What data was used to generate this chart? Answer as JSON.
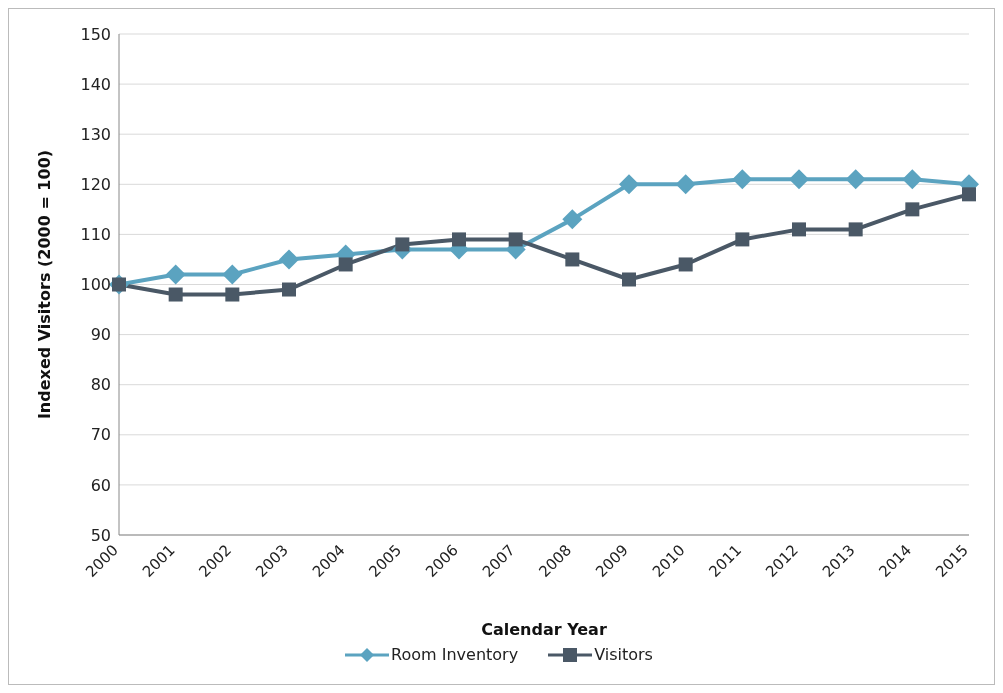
{
  "chart_data": {
    "type": "line",
    "xlabel": "Calendar Year",
    "ylabel": "Indexed Visitors (2000 = 100)",
    "categories": [
      "2000",
      "2001",
      "2002",
      "2003",
      "2004",
      "2005",
      "2006",
      "2007",
      "2008",
      "2009",
      "2010",
      "2011",
      "2012",
      "2013",
      "2014",
      "2015"
    ],
    "series": [
      {
        "name": "Room Inventory",
        "color": "#5ba3c0",
        "marker": "diamond",
        "values": [
          100,
          102,
          102,
          105,
          106,
          107,
          107,
          107,
          113,
          120,
          120,
          121,
          121,
          121,
          121,
          120
        ]
      },
      {
        "name": "Visitors",
        "color": "#4a5866",
        "marker": "square",
        "values": [
          100,
          98,
          98,
          99,
          104,
          108,
          109,
          109,
          105,
          101,
          104,
          109,
          111,
          111,
          115,
          118
        ]
      }
    ],
    "ylim": [
      50,
      150
    ],
    "yticks": [
      50,
      60,
      70,
      80,
      90,
      100,
      110,
      120,
      130,
      140,
      150
    ],
    "grid": "y",
    "legend": "bottom"
  }
}
